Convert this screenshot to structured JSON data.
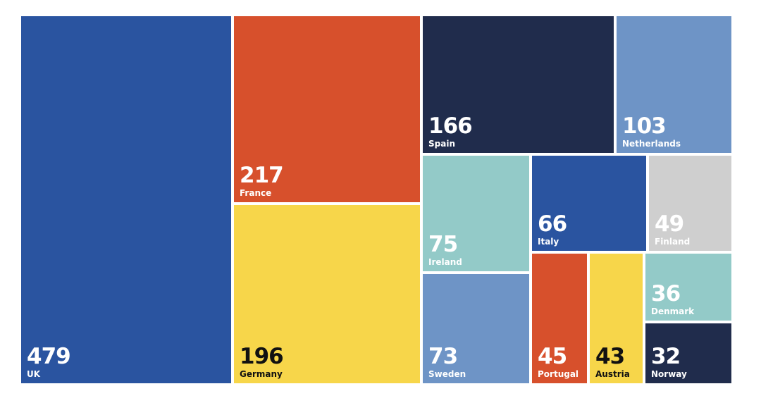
{
  "chart_data": {
    "type": "treemap",
    "title": "",
    "items": [
      {
        "label": "UK",
        "value": 479,
        "color": "#2A54A0",
        "text_color": "#ffffff"
      },
      {
        "label": "France",
        "value": 217,
        "color": "#D7502C",
        "text_color": "#ffffff"
      },
      {
        "label": "Germany",
        "value": 196,
        "color": "#F7D64A",
        "text_color": "#111111"
      },
      {
        "label": "Spain",
        "value": 166,
        "color": "#202C4C",
        "text_color": "#ffffff"
      },
      {
        "label": "Netherlands",
        "value": 103,
        "color": "#6E94C6",
        "text_color": "#ffffff"
      },
      {
        "label": "Ireland",
        "value": 75,
        "color": "#93CAC8",
        "text_color": "#ffffff"
      },
      {
        "label": "Sweden",
        "value": 73,
        "color": "#6E94C6",
        "text_color": "#ffffff"
      },
      {
        "label": "Italy",
        "value": 66,
        "color": "#2A54A0",
        "text_color": "#ffffff"
      },
      {
        "label": "Finland",
        "value": 49,
        "color": "#CFCFCF",
        "text_color": "#ffffff"
      },
      {
        "label": "Portugal",
        "value": 45,
        "color": "#D7502C",
        "text_color": "#ffffff"
      },
      {
        "label": "Austria",
        "value": 43,
        "color": "#F7D64A",
        "text_color": "#111111"
      },
      {
        "label": "Denmark",
        "value": 36,
        "color": "#93CAC8",
        "text_color": "#ffffff"
      },
      {
        "label": "Norway",
        "value": 32,
        "color": "#202C4C",
        "text_color": "#ffffff"
      }
    ]
  }
}
